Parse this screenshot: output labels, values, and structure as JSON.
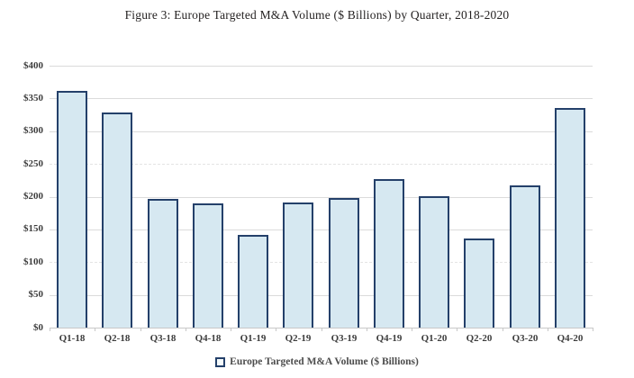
{
  "title": "Figure 3: Europe Targeted M&A Volume ($ Billions) by Quarter, 2018-2020",
  "legend": {
    "label": "Europe Targeted M&A Volume ($ Billions)"
  },
  "chart_data": {
    "type": "bar",
    "title": "Figure 3: Europe Targeted M&A Volume ($ Billions) by Quarter, 2018-2020",
    "categories": [
      "Q1-18",
      "Q2-18",
      "Q3-18",
      "Q4-18",
      "Q1-19",
      "Q2-19",
      "Q3-19",
      "Q4-19",
      "Q1-20",
      "Q2-20",
      "Q3-20",
      "Q4-20"
    ],
    "values": [
      361,
      328,
      197,
      190,
      141,
      191,
      198,
      227,
      200,
      136,
      217,
      335
    ],
    "series_name": "Europe Targeted M&A Volume ($ Billions)",
    "xlabel": "",
    "ylabel": "",
    "ylim": [
      0,
      400
    ],
    "ytick_step": 50,
    "ytick_labels": [
      "$0",
      "$50",
      "$100",
      "$150",
      "$200",
      "$250",
      "$300",
      "$350",
      "$400"
    ],
    "dashed_gridlines": [
      100,
      250
    ],
    "grid": true,
    "legend_position": "bottom",
    "colors": {
      "bar_fill": "#d6e8f1",
      "bar_border": "#24406a",
      "gridline": "#dbdbdb",
      "axis_line": "#c8c8c8",
      "axis_text": "#3d3d3d",
      "title_text": "#221f1f",
      "legend_text": "#4c4c4c"
    }
  }
}
